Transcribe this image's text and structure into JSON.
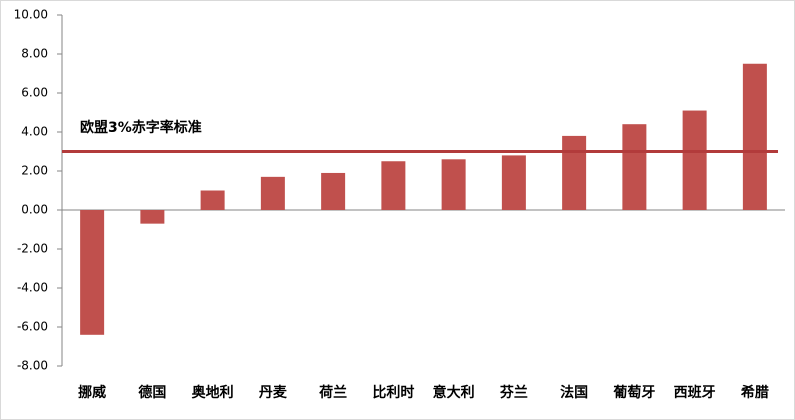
{
  "chart_data": {
    "type": "bar",
    "categories": [
      "挪威",
      "德国",
      "奥地利",
      "丹麦",
      "荷兰",
      "比利时",
      "意大利",
      "芬兰",
      "法国",
      "葡萄牙",
      "西班牙",
      "希腊"
    ],
    "values": [
      -6.4,
      -0.7,
      1.0,
      1.7,
      1.9,
      2.5,
      2.6,
      2.8,
      3.8,
      4.4,
      5.1,
      7.5
    ],
    "color": "#c0504d",
    "ylim": [
      -8,
      10
    ],
    "yticks": [
      {
        "value": -8,
        "label": "-8.00"
      },
      {
        "value": -6,
        "label": "-6.00"
      },
      {
        "value": -4,
        "label": "-4.00"
      },
      {
        "value": -2,
        "label": "-2.00"
      },
      {
        "value": 0,
        "label": "0.00"
      },
      {
        "value": 2,
        "label": "2.00"
      },
      {
        "value": 4,
        "label": "4.00"
      },
      {
        "value": 6,
        "label": "6.00"
      },
      {
        "value": 8,
        "label": "8.00"
      },
      {
        "value": 10,
        "label": "10.00"
      }
    ],
    "reference_line": {
      "value": 3,
      "label": "欧盟3%赤字率标准",
      "color": "#b23b3b"
    }
  }
}
